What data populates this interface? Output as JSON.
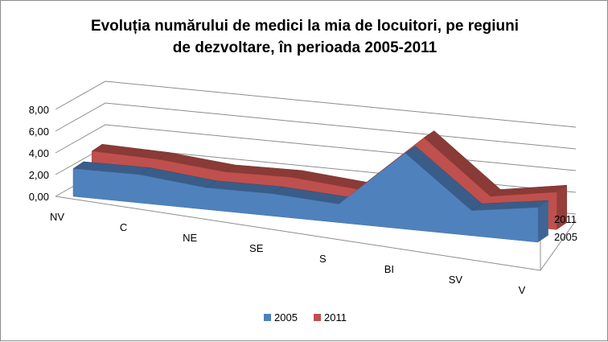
{
  "chart_data": {
    "type": "area",
    "subtype": "3d-area",
    "title_lines": [
      "Evoluția numărului de medici la mia de locuitori, pe regiuni",
      "de dezvoltare, în perioada 2005-2011"
    ],
    "categories": [
      "NV",
      "C",
      "NE",
      "SE",
      "S",
      "BI",
      "SV",
      "V"
    ],
    "y_ticks": [
      "0,00",
      "2,00",
      "4,00",
      "6,00",
      "8,00"
    ],
    "ylim": [
      0,
      8
    ],
    "grid": true,
    "series": [
      {
        "name": "2005",
        "color": "#4f81bd",
        "values": [
          2.55,
          2.6,
          2.0,
          2.05,
          1.7,
          7.0,
          2.3,
          3.2
        ]
      },
      {
        "name": "2011",
        "color": "#c0504d",
        "values": [
          3.0,
          2.85,
          2.3,
          2.4,
          1.9,
          7.25,
          2.45,
          3.45
        ]
      }
    ],
    "depth_labels": [
      "2011",
      "2005"
    ],
    "legend": {
      "position": "bottom",
      "entries": [
        "2005",
        "2011"
      ]
    }
  }
}
